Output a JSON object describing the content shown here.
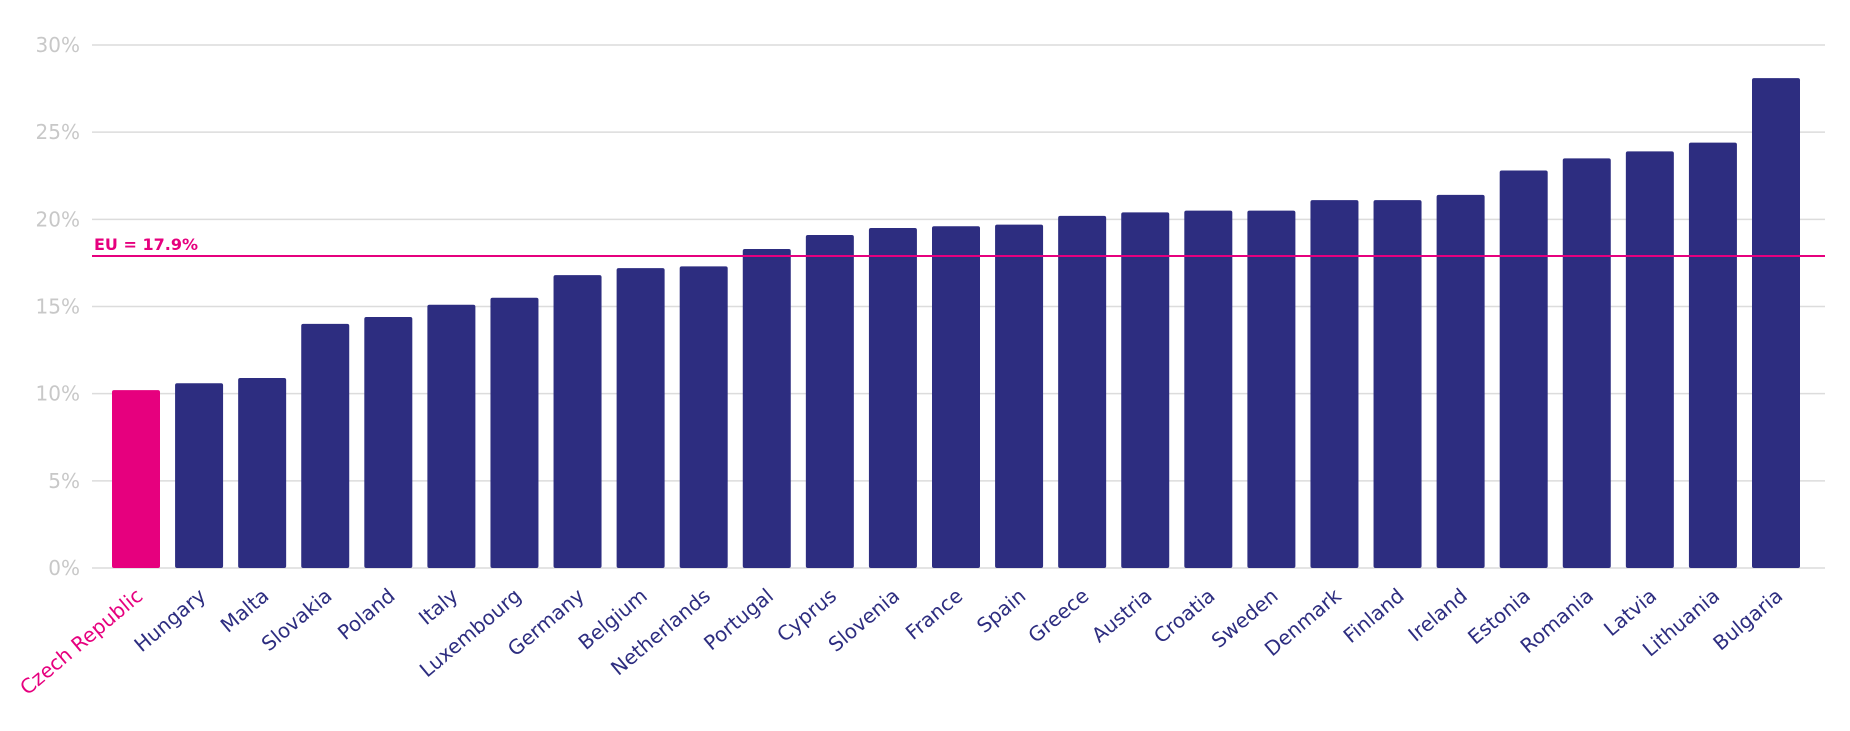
{
  "chart_data": {
    "type": "bar",
    "title": "",
    "xlabel": "",
    "ylabel": "",
    "ylim": [
      0,
      30
    ],
    "y_ticks": [
      0,
      5,
      10,
      15,
      20,
      25,
      30
    ],
    "y_tick_labels": [
      "0%",
      "5%",
      "10%",
      "15%",
      "20%",
      "25%",
      "30%"
    ],
    "grid": true,
    "categories": [
      "Czech Republic",
      "Hungary",
      "Malta",
      "Slovakia",
      "Poland",
      "Italy",
      "Luxembourg",
      "Germany",
      "Belgium",
      "Netherlands",
      "Portugal",
      "Cyprus",
      "Slovenia",
      "France",
      "Spain",
      "Greece",
      "Austria",
      "Croatia",
      "Sweden",
      "Denmark",
      "Finland",
      "Ireland",
      "Estonia",
      "Romania",
      "Latvia",
      "Lithuania",
      "Bulgaria"
    ],
    "values": [
      10.2,
      10.6,
      10.9,
      14.0,
      14.4,
      15.1,
      15.5,
      16.8,
      17.2,
      17.3,
      18.3,
      19.1,
      19.5,
      19.6,
      19.7,
      20.2,
      20.4,
      20.5,
      20.5,
      21.1,
      21.1,
      21.4,
      22.8,
      23.5,
      23.9,
      24.4,
      28.1
    ],
    "highlight_category": "Czech Republic",
    "reference_line": {
      "value": 17.9,
      "label": "EU = 17.9%"
    },
    "colors": {
      "bar": "#2d2d80",
      "highlight": "#e6007e",
      "reference": "#e6007e",
      "grid": "#dcdcdc",
      "tick_label": "#c8c8c8",
      "category_label": "#2d2d80"
    }
  }
}
